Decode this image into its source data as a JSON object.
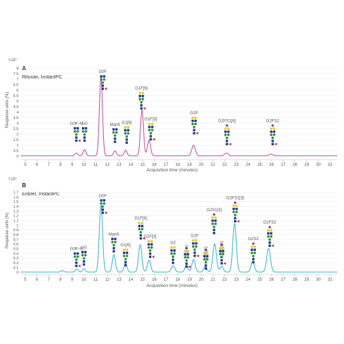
{
  "colors": {
    "panel_a_trace": "#c0569a",
    "panel_b_trace": "#3fb7d0",
    "glcnac": "#1f3b8a",
    "mannose": "#2e8b3e",
    "galactose": "#e8c53a",
    "fucose": "#d62728",
    "sialic": "#7b3f98"
  },
  "chart_data": [
    {
      "type": "line",
      "panel_letter": "A",
      "title": "Rituxan, InstantPC",
      "scale_note": "×10¹",
      "ylabel": "Response units (%)",
      "xlabel": "Acquisition time (minutes)",
      "xlim": [
        4.6,
        31.6
      ],
      "ylim": [
        -0.3,
        8.3
      ],
      "x_ticks": [
        5,
        6,
        7,
        8,
        9,
        10,
        11,
        12,
        13,
        14,
        15,
        16,
        17,
        18,
        19,
        20,
        21,
        22,
        23,
        24,
        25,
        26,
        27,
        28,
        29,
        30,
        31
      ],
      "y_ticks": [
        "0",
        "0.5",
        "1",
        "1.5",
        "2",
        "2.5",
        "3",
        "3.5",
        "4",
        "4.5",
        "5",
        "5.5",
        "6",
        "6.5",
        "7",
        "7.5",
        "8"
      ],
      "peaks": [
        {
          "x": 9.35,
          "y": 0.25,
          "w": 0.12
        },
        {
          "x": 10.05,
          "y": 0.55,
          "w": 0.12
        },
        {
          "x": 11.45,
          "y": 7.15,
          "w": 0.13
        },
        {
          "x": 12.65,
          "y": 0.45,
          "w": 0.12
        },
        {
          "x": 13.55,
          "y": 0.5,
          "w": 0.12
        },
        {
          "x": 14.95,
          "y": 4.15,
          "w": 0.13
        },
        {
          "x": 15.55,
          "y": 1.4,
          "w": 0.13
        },
        {
          "x": 19.35,
          "y": 0.95,
          "w": 0.15
        },
        {
          "x": 22.15,
          "y": 0.25,
          "w": 0.15
        },
        {
          "x": 25.95,
          "y": 0.15,
          "w": 0.15
        }
      ],
      "annotations": [
        {
          "label": "G0F-N",
          "x": 9.35,
          "y": 2.85
        },
        {
          "label": "G0",
          "x": 10.05,
          "y": 2.85
        },
        {
          "label": "G0F",
          "x": 11.6,
          "y": 7.55
        },
        {
          "label": "Man5",
          "x": 12.65,
          "y": 2.75
        },
        {
          "label": "G1[6]",
          "x": 13.65,
          "y": 2.95
        },
        {
          "label": "G1F[6]",
          "x": 14.9,
          "y": 6.05
        },
        {
          "label": "G1F[3]",
          "x": 15.7,
          "y": 3.25
        },
        {
          "label": "G2F",
          "x": 19.4,
          "y": 3.8
        },
        {
          "label": "G2FS1[6]",
          "x": 22.2,
          "y": 3.1
        },
        {
          "label": "G2FS2",
          "x": 26.1,
          "y": 3.1
        }
      ]
    },
    {
      "type": "line",
      "panel_letter": "B",
      "title": "Enbrel, InstantPC",
      "scale_note": "×10¹",
      "ylabel": "Response units (%)",
      "xlabel": "Acquisition time (minutes)",
      "xlim": [
        4.6,
        31.6
      ],
      "ylim": [
        -0.05,
        1.75
      ],
      "x_ticks": [
        5,
        6,
        7,
        8,
        9,
        10,
        11,
        12,
        13,
        14,
        15,
        16,
        17,
        18,
        19,
        20,
        21,
        22,
        23,
        24,
        25,
        26,
        27,
        28,
        29,
        30,
        31
      ],
      "y_ticks": [
        "0",
        "0.1",
        "0.2",
        "0.3",
        "0.4",
        "0.5",
        "0.6",
        "0.7",
        "0.8",
        "0.9",
        "1",
        "1.1",
        "1.2",
        "1.3",
        "1.4",
        "1.5",
        "1.6",
        "1.7"
      ],
      "peaks": [
        {
          "x": 8.15,
          "y": 0.03,
          "w": 0.12
        },
        {
          "x": 9.4,
          "y": 0.06,
          "w": 0.12
        },
        {
          "x": 10.0,
          "y": 0.07,
          "w": 0.12
        },
        {
          "x": 11.45,
          "y": 1.43,
          "w": 0.14
        },
        {
          "x": 12.55,
          "y": 0.37,
          "w": 0.13
        },
        {
          "x": 13.55,
          "y": 0.18,
          "w": 0.13
        },
        {
          "x": 14.8,
          "y": 0.58,
          "w": 0.14
        },
        {
          "x": 15.55,
          "y": 0.25,
          "w": 0.14
        },
        {
          "x": 17.6,
          "y": 0.13,
          "w": 0.15
        },
        {
          "x": 18.75,
          "y": 0.15,
          "w": 0.13
        },
        {
          "x": 19.35,
          "y": 0.27,
          "w": 0.14
        },
        {
          "x": 20.35,
          "y": 0.12,
          "w": 0.14
        },
        {
          "x": 21.15,
          "y": 0.6,
          "w": 0.15
        },
        {
          "x": 21.75,
          "y": 0.12,
          "w": 0.14
        },
        {
          "x": 22.85,
          "y": 1.03,
          "w": 0.15
        },
        {
          "x": 24.4,
          "y": 0.22,
          "w": 0.15
        },
        {
          "x": 25.75,
          "y": 0.5,
          "w": 0.16
        }
      ],
      "annotations": [
        {
          "label": "G0F-N",
          "x": 9.35,
          "y": 0.47,
          "vertical": false
        },
        {
          "label": "G0",
          "x": 10.0,
          "y": 0.5,
          "vertical": false
        },
        {
          "label": "G0F",
          "x": 11.6,
          "y": 1.6,
          "vertical": false
        },
        {
          "label": "Man5",
          "x": 12.55,
          "y": 0.78,
          "vertical": false
        },
        {
          "label": "G1[6]",
          "x": 13.55,
          "y": 0.55,
          "vertical": false
        },
        {
          "label": "G1F[6]",
          "x": 14.85,
          "y": 1.12,
          "vertical": false
        },
        {
          "label": "G1F[3]",
          "x": 15.65,
          "y": 0.73,
          "vertical": false
        },
        {
          "label": "G2",
          "x": 17.6,
          "y": 0.6,
          "vertical": false
        },
        {
          "label": "G1FS1",
          "x": 18.75,
          "y": 0.57,
          "vertical": true
        },
        {
          "label": "G2F",
          "x": 19.45,
          "y": 0.75,
          "vertical": false
        },
        {
          "label": "G2S1[6]",
          "x": 20.4,
          "y": 0.53,
          "vertical": true
        },
        {
          "label": "G2S1[3]",
          "x": 21.1,
          "y": 1.3,
          "vertical": false
        },
        {
          "label": "G2FS1[6]",
          "x": 21.75,
          "y": 0.64,
          "vertical": true
        },
        {
          "label": "G2FS1[3]",
          "x": 22.9,
          "y": 1.55,
          "vertical": false
        },
        {
          "label": "G2S2",
          "x": 24.45,
          "y": 0.68,
          "vertical": false
        },
        {
          "label": "G2FS2",
          "x": 25.85,
          "y": 1.03,
          "vertical": false
        }
      ]
    }
  ]
}
